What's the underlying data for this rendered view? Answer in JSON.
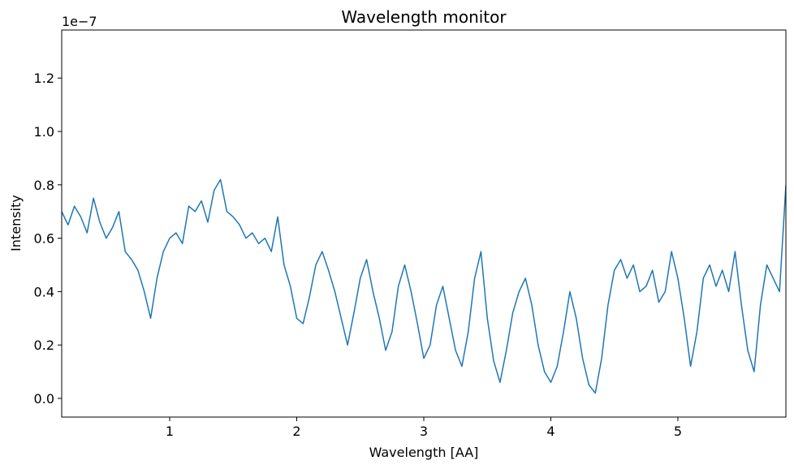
{
  "chart_data": {
    "type": "line",
    "title": "Wavelength monitor",
    "xlabel": "Wavelength [AA]",
    "ylabel": "Intensity",
    "offset_label": "1e−7",
    "xlim": [
      0.15,
      5.85
    ],
    "ylim": [
      -0.07,
      1.38
    ],
    "xticks": [
      1,
      2,
      3,
      4,
      5
    ],
    "xtick_labels": [
      "1",
      "2",
      "3",
      "4",
      "5"
    ],
    "yticks": [
      0.0,
      0.2,
      0.4,
      0.6,
      0.8,
      1.0,
      1.2
    ],
    "ytick_labels": [
      "0.0",
      "0.2",
      "0.4",
      "0.6",
      "0.8",
      "1.0",
      "1.2"
    ],
    "grid": false,
    "line_color": "#1f77b4",
    "series": [
      {
        "x": [
          0.15,
          0.2,
          0.25,
          0.3,
          0.35,
          0.4,
          0.45,
          0.5,
          0.55,
          0.6,
          0.65,
          0.7,
          0.75,
          0.8,
          0.85,
          0.9,
          0.95,
          1.0,
          1.05,
          1.1,
          1.15,
          1.2,
          1.25,
          1.3,
          1.35,
          1.4,
          1.45,
          1.5,
          1.55,
          1.6,
          1.65,
          1.7,
          1.75,
          1.8,
          1.85,
          1.9,
          1.95,
          2.0,
          2.05,
          2.1,
          2.15,
          2.2,
          2.25,
          2.3,
          2.35,
          2.4,
          2.45,
          2.5,
          2.55,
          2.6,
          2.65,
          2.7,
          2.75,
          2.8,
          2.85,
          2.9,
          2.95,
          3.0,
          3.05,
          3.1,
          3.15,
          3.2,
          3.25,
          3.3,
          3.35,
          3.4,
          3.45,
          3.5,
          3.55,
          3.6,
          3.65,
          3.7,
          3.75,
          3.8,
          3.85,
          3.9,
          3.95,
          4.0,
          4.05,
          4.1,
          4.15,
          4.2,
          4.25,
          4.3,
          4.35,
          4.4,
          4.45,
          4.5,
          4.55,
          4.6,
          4.65,
          4.7,
          4.75,
          4.8,
          4.85,
          4.9,
          4.95,
          5.0,
          5.05,
          5.1,
          5.15,
          5.2,
          5.25,
          5.3,
          5.35,
          5.4,
          5.45,
          5.5,
          5.55,
          5.6,
          5.65,
          5.7,
          5.75,
          5.8,
          5.85
        ],
        "y": [
          0.7,
          0.65,
          0.72,
          0.68,
          0.62,
          0.75,
          0.66,
          0.6,
          0.64,
          0.7,
          0.55,
          0.52,
          0.48,
          0.4,
          0.3,
          0.45,
          0.55,
          0.6,
          0.62,
          0.58,
          0.72,
          0.7,
          0.74,
          0.66,
          0.78,
          0.82,
          0.7,
          0.68,
          0.65,
          0.6,
          0.62,
          0.58,
          0.6,
          0.55,
          0.68,
          0.5,
          0.42,
          0.3,
          0.28,
          0.38,
          0.5,
          0.55,
          0.48,
          0.4,
          0.3,
          0.2,
          0.32,
          0.45,
          0.52,
          0.4,
          0.3,
          0.18,
          0.25,
          0.42,
          0.5,
          0.4,
          0.28,
          0.15,
          0.2,
          0.35,
          0.42,
          0.3,
          0.18,
          0.12,
          0.25,
          0.45,
          0.55,
          0.3,
          0.14,
          0.06,
          0.18,
          0.32,
          0.4,
          0.45,
          0.35,
          0.2,
          0.1,
          0.06,
          0.12,
          0.25,
          0.4,
          0.3,
          0.15,
          0.05,
          0.02,
          0.15,
          0.35,
          0.48,
          0.52,
          0.45,
          0.5,
          0.4,
          0.42,
          0.48,
          0.36,
          0.4,
          0.55,
          0.45,
          0.3,
          0.12,
          0.25,
          0.45,
          0.5,
          0.42,
          0.48,
          0.4,
          0.55,
          0.35,
          0.18,
          0.1,
          0.35,
          0.5,
          0.45,
          0.4,
          0.8
        ]
      }
    ]
  }
}
